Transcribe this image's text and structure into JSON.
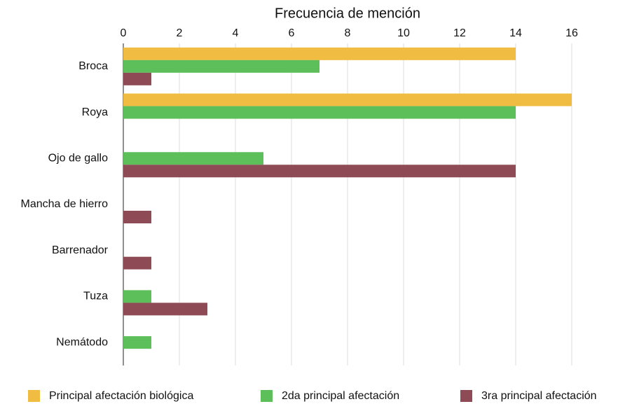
{
  "chart_data": {
    "type": "bar",
    "orientation": "horizontal",
    "title": "Frecuencia de mención",
    "categories": [
      "Broca",
      "Roya",
      "Ojo de gallo",
      "Mancha de hierro",
      "Barrenador",
      "Tuza",
      "Nemátodo"
    ],
    "series": [
      {
        "name": "Principal afectación biológica",
        "color": "#f0bc42",
        "values": [
          14,
          16,
          0,
          0,
          0,
          0,
          0
        ]
      },
      {
        "name": "2da principal afectación",
        "color": "#5cbf5a",
        "values": [
          7,
          14,
          5,
          0,
          0,
          1,
          1
        ]
      },
      {
        "name": "3ra principal afectación",
        "color": "#8e4b55",
        "values": [
          1,
          0,
          14,
          1,
          1,
          3,
          0
        ]
      }
    ],
    "xlim": [
      0,
      16
    ],
    "xticks": [
      0,
      2,
      4,
      6,
      8,
      10,
      12,
      14,
      16
    ],
    "grid": true,
    "legend": "bottom"
  }
}
